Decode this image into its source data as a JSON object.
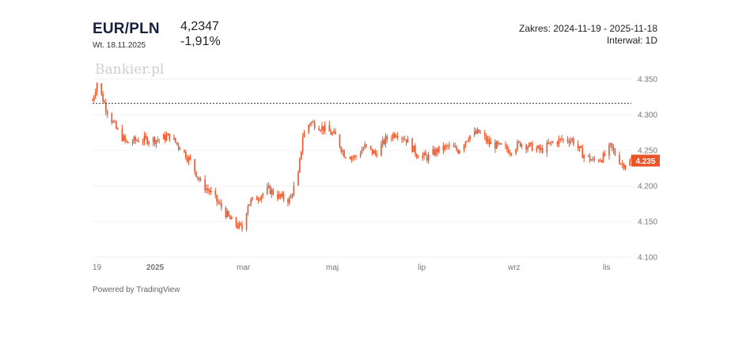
{
  "header": {
    "pair": "EUR/PLN",
    "date": "Wt. 18.11.2025",
    "price": "4,2347",
    "change": "-1,91%",
    "range": "Zakres: 2024-11-19 - 2025-11-18",
    "interval": "Interwał: 1D"
  },
  "watermark": "Bankier.pl",
  "footer": {
    "powered": "Powered by TradingView"
  },
  "colors": {
    "series": "#e8552a",
    "grid": "#f0f0f0",
    "reference": "#333333"
  },
  "chart_data": {
    "type": "candlestick",
    "x_range": [
      "2024-11-19",
      "2025-11-18"
    ],
    "ylim": [
      4.1,
      4.37
    ],
    "yticks": [
      "4.350",
      "4.300",
      "4.250",
      "4.200",
      "4.150",
      "4.100"
    ],
    "xticks": [
      "19",
      "2025",
      "mar",
      "maj",
      "lip",
      "wrz",
      "lis"
    ],
    "reference_line": 4.316,
    "last_value_label": "4.235",
    "last_value": 4.235,
    "close_path": [
      [
        "2024-11-19",
        4.32
      ],
      [
        "2024-11-22",
        4.345
      ],
      [
        "2024-11-28",
        4.31
      ],
      [
        "2024-12-05",
        4.28
      ],
      [
        "2024-12-12",
        4.26
      ],
      [
        "2024-12-20",
        4.265
      ],
      [
        "2025-01-02",
        4.265
      ],
      [
        "2025-01-10",
        4.27
      ],
      [
        "2025-01-17",
        4.255
      ],
      [
        "2025-01-24",
        4.235
      ],
      [
        "2025-01-31",
        4.205
      ],
      [
        "2025-02-07",
        4.19
      ],
      [
        "2025-02-14",
        4.17
      ],
      [
        "2025-02-21",
        4.15
      ],
      [
        "2025-02-28",
        4.14
      ],
      [
        "2025-03-04",
        4.175
      ],
      [
        "2025-03-11",
        4.185
      ],
      [
        "2025-03-18",
        4.195
      ],
      [
        "2025-03-25",
        4.185
      ],
      [
        "2025-04-01",
        4.18
      ],
      [
        "2025-04-07",
        4.215
      ],
      [
        "2025-04-10",
        4.27
      ],
      [
        "2025-04-15",
        4.29
      ],
      [
        "2025-04-25",
        4.28
      ],
      [
        "2025-05-02",
        4.27
      ],
      [
        "2025-05-08",
        4.245
      ],
      [
        "2025-05-15",
        4.24
      ],
      [
        "2025-05-22",
        4.255
      ],
      [
        "2025-05-29",
        4.245
      ],
      [
        "2025-06-05",
        4.265
      ],
      [
        "2025-06-12",
        4.275
      ],
      [
        "2025-06-19",
        4.265
      ],
      [
        "2025-06-26",
        4.245
      ],
      [
        "2025-07-03",
        4.24
      ],
      [
        "2025-07-10",
        4.25
      ],
      [
        "2025-07-17",
        4.255
      ],
      [
        "2025-07-24",
        4.25
      ],
      [
        "2025-07-31",
        4.27
      ],
      [
        "2025-08-07",
        4.275
      ],
      [
        "2025-08-14",
        4.26
      ],
      [
        "2025-08-21",
        4.255
      ],
      [
        "2025-08-28",
        4.25
      ],
      [
        "2025-09-04",
        4.26
      ],
      [
        "2025-09-11",
        4.255
      ],
      [
        "2025-09-18",
        4.25
      ],
      [
        "2025-09-25",
        4.26
      ],
      [
        "2025-10-02",
        4.265
      ],
      [
        "2025-10-09",
        4.265
      ],
      [
        "2025-10-16",
        4.245
      ],
      [
        "2025-10-23",
        4.235
      ],
      [
        "2025-10-30",
        4.24
      ],
      [
        "2025-11-04",
        4.255
      ],
      [
        "2025-11-07",
        4.245
      ],
      [
        "2025-11-12",
        4.23
      ],
      [
        "2025-11-18",
        4.235
      ]
    ]
  }
}
